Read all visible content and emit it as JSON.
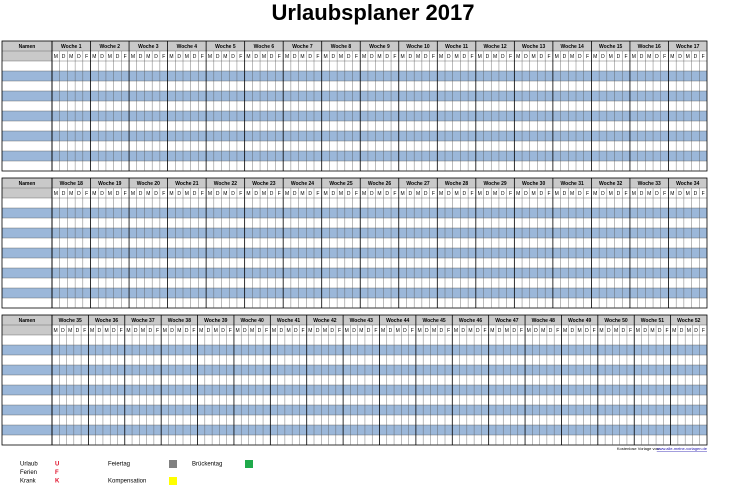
{
  "title": "Urlaubsplaner 2017",
  "name_header": "Namen",
  "days": [
    "M",
    "D",
    "M",
    "D",
    "F"
  ],
  "blocks": [
    {
      "weeks": [
        "Woche 1",
        "Woche 2",
        "Woche 3",
        "Woche 4",
        "Woche 5",
        "Woche 6",
        "Woche 7",
        "Woche 8",
        "Woche 9",
        "Woche 10",
        "Woche 11",
        "Woche 12",
        "Woche 13",
        "Woche 14",
        "Woche 15",
        "Woche 16",
        "Woche 17"
      ]
    },
    {
      "weeks": [
        "Woche 18",
        "Woche 19",
        "Woche 20",
        "Woche 21",
        "Woche 22",
        "Woche 23",
        "Woche 24",
        "Woche 25",
        "Woche 26",
        "Woche 27",
        "Woche 28",
        "Woche 29",
        "Woche 30",
        "Woche 31",
        "Woche 32",
        "Woche 33",
        "Woche 34"
      ]
    },
    {
      "weeks": [
        "Woche 35",
        "Woche 36",
        "Woche 37",
        "Woche 38",
        "Woche 39",
        "Woche 40",
        "Woche 41",
        "Woche 42",
        "Woche 43",
        "Woche 44",
        "Woche 45",
        "Woche 46",
        "Woche 47",
        "Woche 48",
        "Woche 49",
        "Woche 50",
        "Woche 51",
        "Woche 52"
      ]
    }
  ],
  "footer": {
    "text": "Kostenlose Vorlage von:",
    "link": "www.alle-meine-vorlagen.de"
  },
  "legend_codes": [
    {
      "label": "Urlaub",
      "code": "U"
    },
    {
      "label": "Ferien",
      "code": "F"
    },
    {
      "label": "Krank",
      "code": "K"
    }
  ],
  "legend_colors": [
    {
      "label": "Feiertag",
      "color": "#808080"
    },
    {
      "label": "Brückentag",
      "color": "#1faa4b"
    },
    {
      "label": "Kompensation",
      "color": "#ffff00"
    }
  ]
}
